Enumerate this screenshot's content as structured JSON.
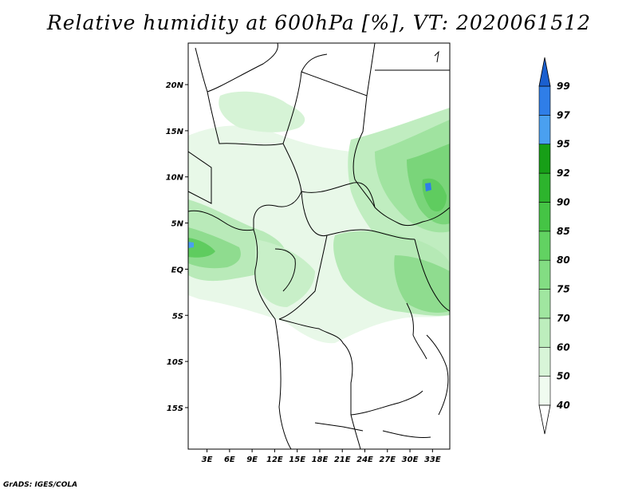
{
  "title": "Relative humidity at 600hPa [%], VT: 2020061512",
  "credit": "GrADS: IGES/COLA",
  "map": {
    "lat_labels": [
      "20N",
      "15N",
      "10N",
      "5N",
      "EQ",
      "5S",
      "10S",
      "15S"
    ],
    "lat_values": [
      20,
      15,
      10,
      5,
      0,
      -5,
      -10,
      -15
    ],
    "lon_labels": [
      "3E",
      "6E",
      "9E",
      "12E",
      "15E",
      "18E",
      "21E",
      "24E",
      "27E",
      "30E",
      "33E"
    ],
    "lon_values": [
      3,
      6,
      9,
      12,
      15,
      18,
      21,
      24,
      27,
      30,
      33
    ],
    "lat_range": [
      -19.5,
      24.5
    ],
    "lon_range": [
      0.5,
      35.3
    ]
  },
  "colorbar": {
    "levels": [
      "40",
      "50",
      "60",
      "70",
      "75",
      "80",
      "85",
      "90",
      "92",
      "95",
      "97",
      "99"
    ],
    "colors": [
      "#f0fbf0",
      "#d8f5d8",
      "#bdeebd",
      "#a0e6a0",
      "#83dd83",
      "#62d262",
      "#45c445",
      "#2db42d",
      "#179f17",
      "#4aa0f0",
      "#2f7ee8",
      "#1a5fcf"
    ]
  },
  "colors": {
    "land": "#ffffff",
    "border": "#000000"
  }
}
